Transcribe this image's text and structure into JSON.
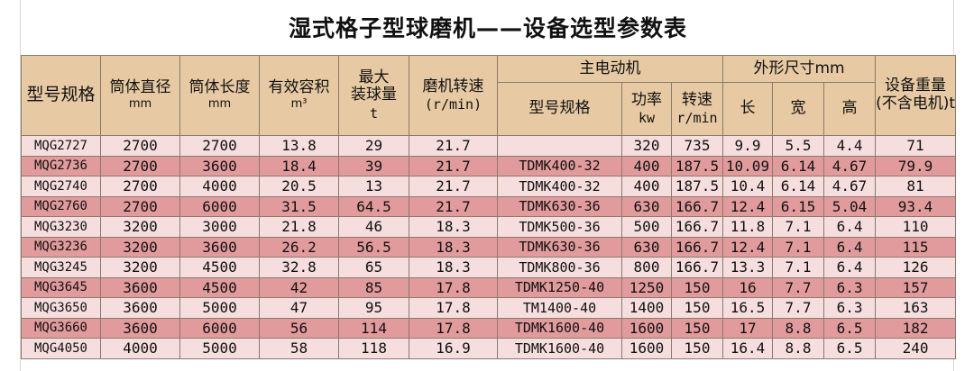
{
  "title": "湿式格子型球磨机——设备选型参数表",
  "headers": {
    "model": "型号规格",
    "diameter": "筒体直径",
    "diameter_unit": "mm",
    "length": "筒体长度",
    "length_unit": "mm",
    "volume": "有效容积",
    "volume_unit": "m³",
    "ball_load_line1": "最大",
    "ball_load_line2": "装球量",
    "ball_load_unit": "t",
    "speed": "磨机转速",
    "speed_unit": "(r/min)",
    "motor_group": "主电动机",
    "motor_model": "型号规格",
    "motor_power": "功率",
    "motor_power_unit": "kw",
    "motor_speed": "转速",
    "motor_speed_unit": "r/min",
    "dims_group": "外形尺寸mm",
    "dim_length": "长",
    "dim_width": "宽",
    "dim_height": "高",
    "weight_line1": "设备重量",
    "weight_line2": "(不含电机)t"
  },
  "rows": [
    [
      "MQG2727",
      "2700",
      "2700",
      "13.8",
      "29",
      "21.7",
      "",
      "320",
      "735",
      "9.9",
      "5.5",
      "4.4",
      "71"
    ],
    [
      "MQG2736",
      "2700",
      "3600",
      "18.4",
      "39",
      "21.7",
      "TDMK400-32",
      "400",
      "187.5",
      "10.09",
      "6.14",
      "4.67",
      "79.9"
    ],
    [
      "MQG2740",
      "2700",
      "4000",
      "20.5",
      "13",
      "21.7",
      "TDMK400-32",
      "400",
      "187.5",
      "10.4",
      "6.14",
      "4.67",
      "81"
    ],
    [
      "MQG2760",
      "2700",
      "6000",
      "31.5",
      "64.5",
      "21.7",
      "TDMK630-36",
      "630",
      "166.7",
      "12.4",
      "6.15",
      "5.04",
      "93.4"
    ],
    [
      "MQG3230",
      "3200",
      "3000",
      "21.8",
      "46",
      "18.3",
      "TDMK500-36",
      "500",
      "166.7",
      "11.8",
      "7.1",
      "6.4",
      "110"
    ],
    [
      "MQG3236",
      "3200",
      "3600",
      "26.2",
      "56.5",
      "18.3",
      "TDMK630-36",
      "630",
      "166.7",
      "12.4",
      "7.1",
      "6.4",
      "115"
    ],
    [
      "MQG3245",
      "3200",
      "4500",
      "32.8",
      "65",
      "18.3",
      "TDMK800-36",
      "800",
      "166.7",
      "13.3",
      "7.1",
      "6.4",
      "126"
    ],
    [
      "MQG3645",
      "3600",
      "4500",
      "42",
      "85",
      "17.8",
      "TDMK1250-40",
      "1250",
      "150",
      "16",
      "7.7",
      "6.3",
      "157"
    ],
    [
      "MQG3650",
      "3600",
      "5000",
      "47",
      "95",
      "17.8",
      "TM1400-40",
      "1400",
      "150",
      "16.5",
      "7.7",
      "6.3",
      "163"
    ],
    [
      "MQG3660",
      "3600",
      "6000",
      "56",
      "114",
      "17.8",
      "TDMK1600-40",
      "1600",
      "150",
      "17",
      "8.8",
      "6.5",
      "182"
    ],
    [
      "MQG4050",
      "4000",
      "5000",
      "58",
      "118",
      "16.9",
      "TDMK1600-40",
      "1600",
      "150",
      "16.4",
      "8.8",
      "6.5",
      "240"
    ]
  ]
}
